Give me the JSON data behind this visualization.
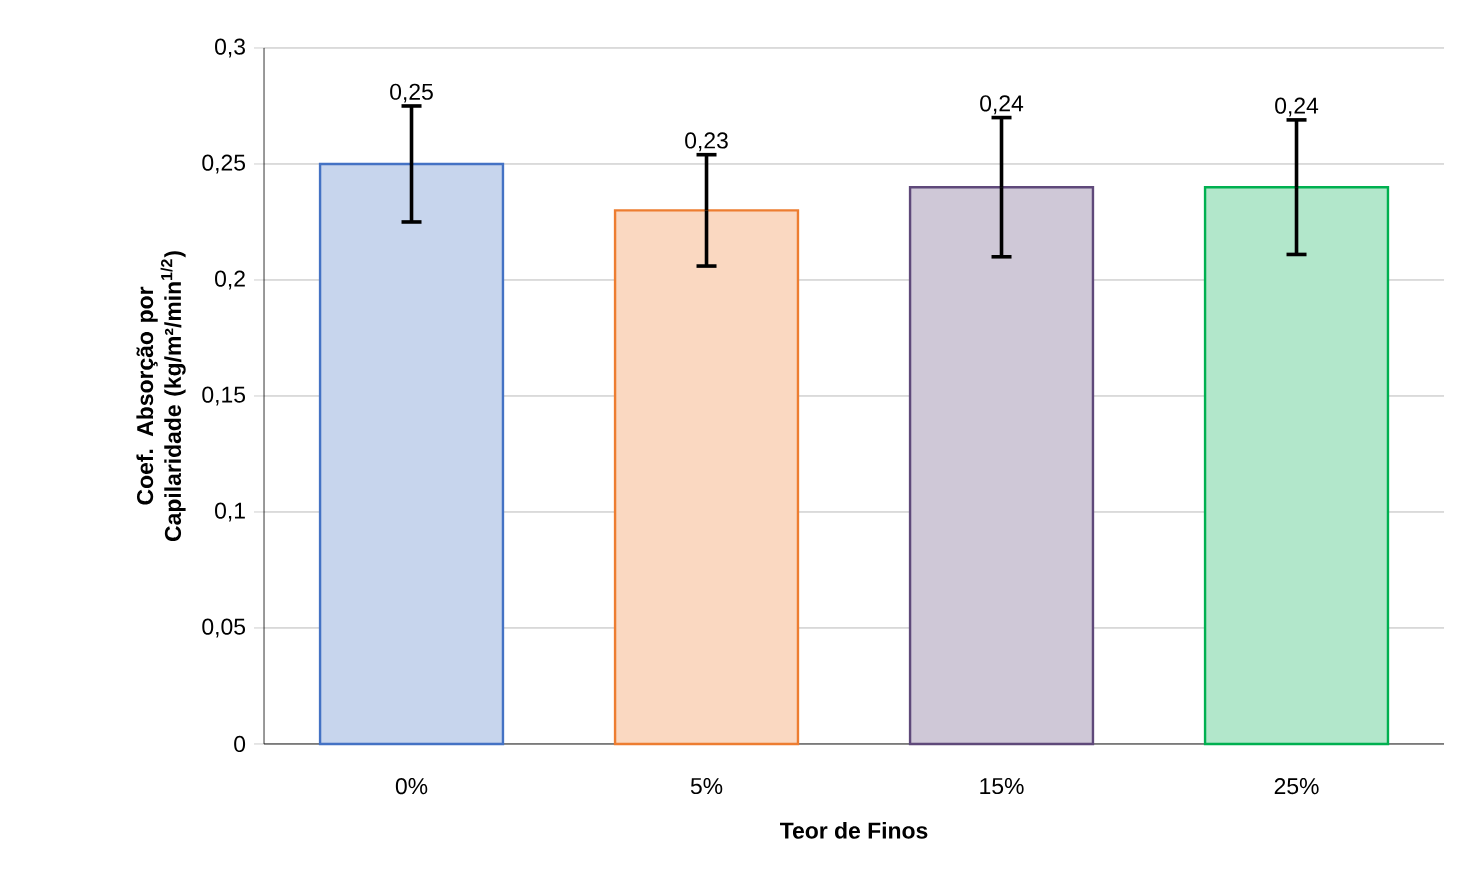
{
  "chart_data": {
    "type": "bar",
    "xlabel": "Teor de Finos",
    "ylabel": "Coef. Absorção por Capilaridade (kg/m²/min$^{1/2}$)",
    "categories": [
      "0%",
      "5%",
      "15%",
      "25%"
    ],
    "values": [
      0.25,
      0.23,
      0.24,
      0.24
    ],
    "colors": [
      "#4472c4",
      "#ed7d31",
      "#5f497a",
      "#00b050"
    ],
    "errors": [
      0.025,
      0.024,
      0.03,
      0.029
    ],
    "value_labels": [
      "0,25",
      "0,23",
      "0,24",
      "0,24"
    ],
    "ylim": [
      0,
      0.3
    ],
    "yticks": [
      {
        "value": 0,
        "label": "0"
      },
      {
        "value": 0.05,
        "label": "0,05"
      },
      {
        "value": 0.1,
        "label": "0,1"
      },
      {
        "value": 0.15,
        "label": "0,15"
      },
      {
        "value": 0.2,
        "label": "0,2"
      },
      {
        "value": 0.25,
        "label": "0,25"
      },
      {
        "value": 0.3,
        "label": "0,3"
      }
    ],
    "grid": "y"
  }
}
